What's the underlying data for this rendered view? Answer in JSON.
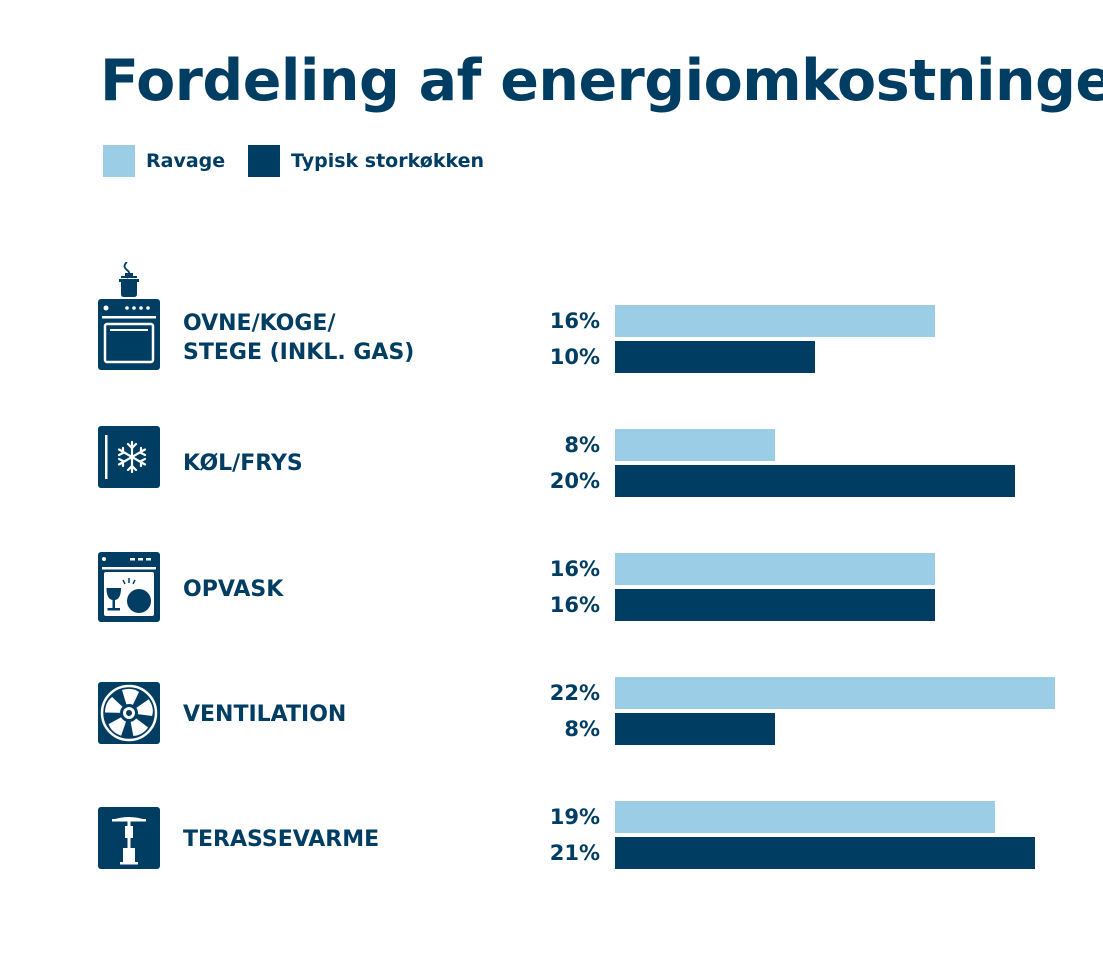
{
  "chart_data": {
    "type": "bar",
    "orientation": "horizontal",
    "title": "Fordeling af energiomkostninger",
    "categories": [
      "OVNE/KOGE/\nSTEGE (INKL. GAS)",
      "KØL/FRYS",
      "OPVASK",
      "VENTILATION",
      "TERASSEVARME"
    ],
    "category_icons": [
      "stove-icon",
      "freezer-icon",
      "dishwasher-icon",
      "fan-icon",
      "patio-heater-icon"
    ],
    "series": [
      {
        "name": "Ravage",
        "values": [
          16,
          8,
          16,
          22,
          19
        ],
        "color": "#9ccde6"
      },
      {
        "name": "Typisk storkøkken",
        "values": [
          10,
          20,
          16,
          8,
          21
        ],
        "color": "#003d63"
      }
    ],
    "value_suffix": "%",
    "xlim": [
      0,
      22
    ],
    "grid": false,
    "legend_position": "top-left"
  }
}
